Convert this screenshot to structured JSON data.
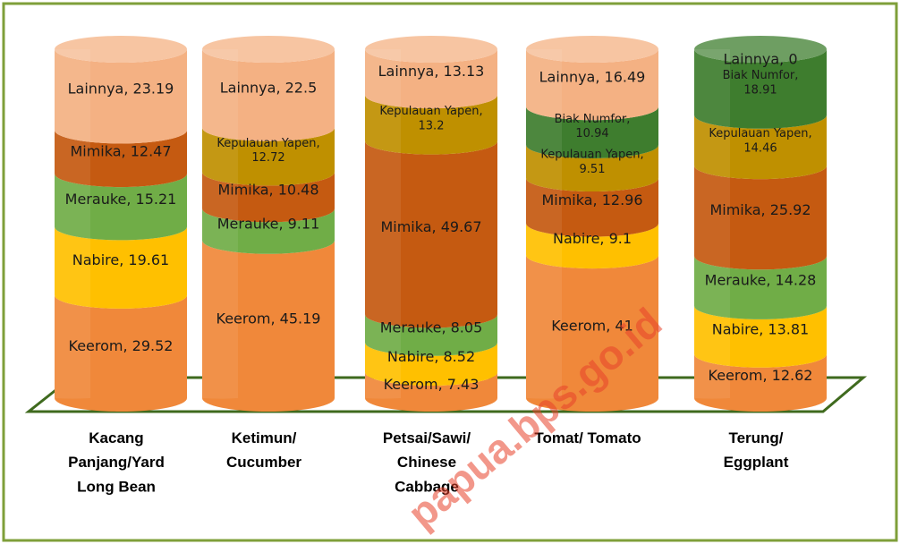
{
  "chart_data": {
    "type": "stacked-cylinder",
    "categories": [
      "Kacang Panjang/Yard Long Bean",
      "Ketimun/ Cucumber",
      "Petsai/Sawi/ Chinese Cabbage",
      "Tomat/ Tomato",
      "Terung/ Eggplant"
    ],
    "series": [
      {
        "name": "Keerom",
        "color": "#f0883a",
        "values": [
          29.52,
          45.19,
          7.43,
          41,
          12.62
        ],
        "value_labels": [
          "Keerom, 29.52",
          "Keerom, 45.19",
          "Keerom, 7.43",
          "Keerom, 41",
          "Keerom, 12.62"
        ]
      },
      {
        "name": "Nabire",
        "color": "#ffc000",
        "values": [
          19.61,
          null,
          8.52,
          9.1,
          13.81
        ],
        "value_labels": [
          "Nabire, 19.61",
          null,
          "Nabire, 8.52",
          "Nabire, 9.1",
          "Nabire, 13.81"
        ]
      },
      {
        "name": "Merauke",
        "color": "#70ad47",
        "values": [
          15.21,
          9.11,
          8.05,
          null,
          14.28
        ],
        "value_labels": [
          "Merauke, 15.21",
          "Merauke, 9.11",
          "Merauke, 8.05",
          null,
          "Merauke, 14.28"
        ]
      },
      {
        "name": "Mimika",
        "color": "#c55a11",
        "values": [
          12.47,
          10.48,
          49.67,
          12.96,
          25.92
        ],
        "value_labels": [
          "Mimika, 12.47",
          "Mimika, 10.48",
          "Mimika, 49.67",
          "Mimika, 12.96",
          "Mimika, 25.92"
        ]
      },
      {
        "name": "Kepulauan Yapen",
        "color": "#bf9000",
        "values": [
          null,
          12.72,
          13.2,
          9.51,
          14.46
        ],
        "value_labels": [
          null,
          "Kepulauan Yapen, 12.72",
          "Kepulauan Yapen, 13.2",
          "Kepulauan Yapen, 9.51",
          "Kepulauan Yapen, 14.46"
        ]
      },
      {
        "name": "Biak Numfor",
        "color": "#3e7d2e",
        "values": [
          null,
          null,
          null,
          10.94,
          18.91
        ],
        "value_labels": [
          null,
          null,
          null,
          "Biak Numfor, 10.94",
          "Biak Numfor, 18.91"
        ]
      },
      {
        "name": "Lainnya",
        "color": "#f4b183",
        "values": [
          23.19,
          22.5,
          13.13,
          16.49,
          0
        ],
        "value_labels": [
          "Lainnya, 23.19",
          "Lainnya, 22.5",
          "Lainnya, 13.13",
          "Lainnya, 16.49",
          "Lainnya, 0"
        ]
      }
    ],
    "watermark": "papua.bps.go.id"
  }
}
